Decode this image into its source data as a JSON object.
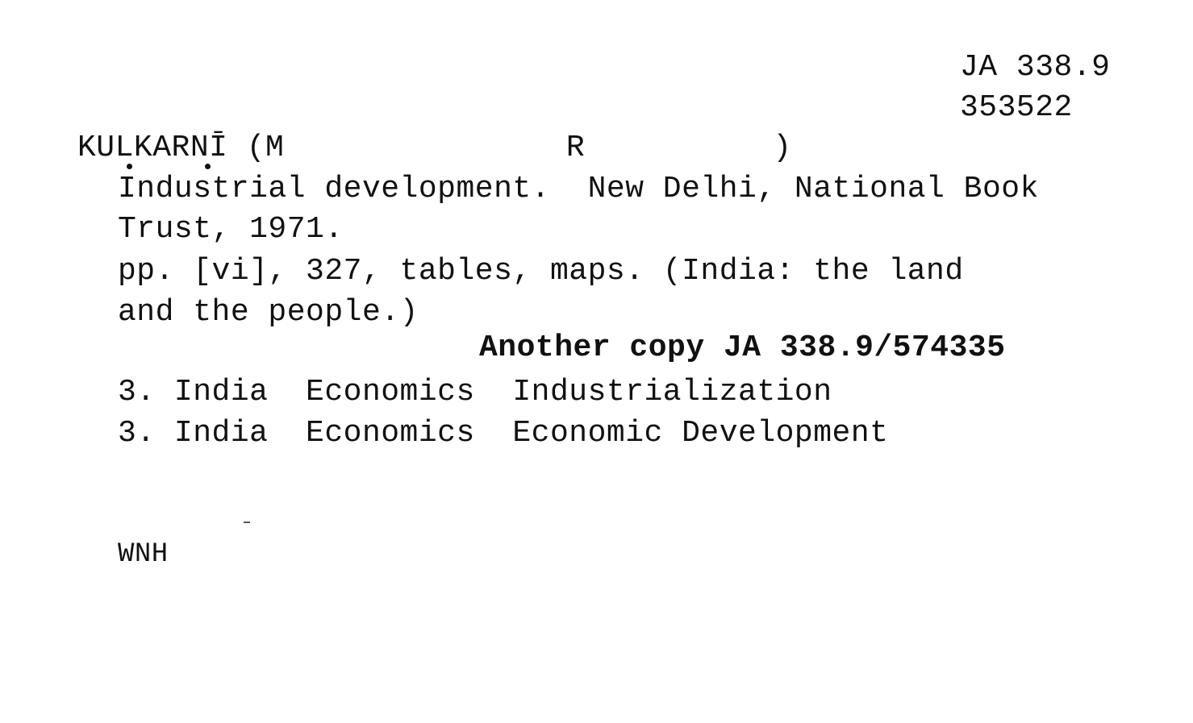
{
  "card": {
    "shelf_mark": "JA 338.9",
    "accession_no": "353522",
    "author_heading": "KULKARNĪ (M               R          )",
    "title_line_1": "Industrial development.  New Delhi, National Book",
    "title_line_2": "Trust, 1971.",
    "collation_line_1": "pp. [vi], 327, tables, maps. (India: the land",
    "collation_line_2": "and the people.)",
    "another_copy": "Another copy JA 338.9/574335",
    "subjects": [
      "3. India  Economics  Industrialization",
      "3. India  Economics  Economic Development"
    ],
    "cataloguer": "WNH"
  }
}
